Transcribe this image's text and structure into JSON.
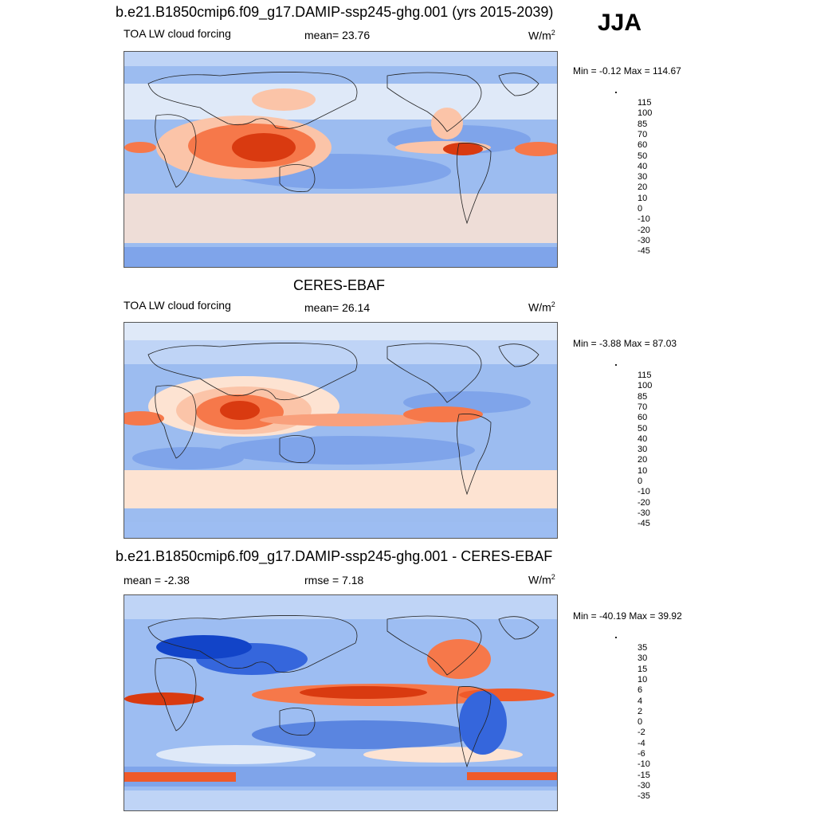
{
  "season": "JJA",
  "panels": [
    {
      "title": "b.e21.B1850cmip6.f09_g17.DAMIP-ssp245-ghg.001 (yrs 2015-2039)",
      "left_label": "TOA LW cloud forcing",
      "center_label": "mean=  23.76",
      "units": "W/m",
      "units_sup": "2",
      "minmax": "Min =  -0.12 Max = 114.67",
      "colorbar_ticks": [
        "115",
        "100",
        "85",
        "70",
        "60",
        "50",
        "40",
        "30",
        "20",
        "10",
        "0",
        "-10",
        "-20",
        "-30",
        "-45"
      ],
      "colors": [
        "#7a0000",
        "#b01a00",
        "#d93a10",
        "#ef5a2a",
        "#f6784a",
        "#f9a07c",
        "#fbc4a8",
        "#fde3d2",
        "#dfe9f8",
        "#bfd4f6",
        "#9dbdf2",
        "#7fa4ea",
        "#5a85e0",
        "#3566dc",
        "#1244c8",
        "#0a2aa8"
      ]
    },
    {
      "title": "CERES-EBAF",
      "left_label": "TOA LW cloud forcing",
      "center_label": "mean=  26.14",
      "units": "W/m",
      "units_sup": "2",
      "minmax": "Min =  -3.88 Max =  87.03",
      "colorbar_ticks": [
        "115",
        "100",
        "85",
        "70",
        "60",
        "50",
        "40",
        "30",
        "20",
        "10",
        "0",
        "-10",
        "-20",
        "-30",
        "-45"
      ],
      "colors": [
        "#7a0000",
        "#b01a00",
        "#d93a10",
        "#ef5a2a",
        "#f6784a",
        "#f9a07c",
        "#fbc4a8",
        "#fde3d2",
        "#dfe9f8",
        "#bfd4f6",
        "#9dbdf2",
        "#7fa4ea",
        "#5a85e0",
        "#3566dc",
        "#1244c8",
        "#0a2aa8"
      ]
    },
    {
      "title": "b.e21.B1850cmip6.f09_g17.DAMIP-ssp245-ghg.001 - CERES-EBAF",
      "left_label": "mean =  -2.38",
      "center_label": "rmse =   7.18",
      "units": "W/m",
      "units_sup": "2",
      "minmax": "Min = -40.19 Max =  39.92",
      "colorbar_ticks": [
        "35",
        "30",
        "15",
        "10",
        "6",
        "4",
        "2",
        "0",
        "-2",
        "-4",
        "-6",
        "-10",
        "-15",
        "-30",
        "-35"
      ],
      "colors": [
        "#7a0000",
        "#b01a00",
        "#d93a10",
        "#ef5a2a",
        "#f6784a",
        "#f9a07c",
        "#fbc4a8",
        "#fde3d2",
        "#ffffff",
        "#dfe9f8",
        "#bfd4f6",
        "#9dbdf2",
        "#5a85e0",
        "#1244c8",
        "#0a2aa8",
        "#000e8a"
      ]
    }
  ]
}
